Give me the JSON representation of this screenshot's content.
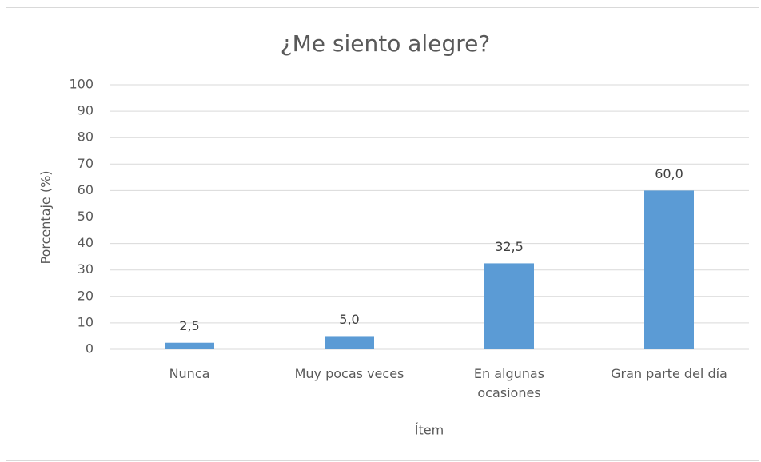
{
  "chart_data": {
    "type": "bar",
    "title": "¿Me siento alegre?",
    "categories": [
      "Nunca",
      "Muy pocas veces",
      "En algunas ocasiones",
      "Gran parte del día"
    ],
    "values": [
      2.5,
      5.0,
      32.5,
      60.0
    ],
    "value_labels": [
      "2,5",
      "5,0",
      "32,5",
      "60,0"
    ],
    "color": "#5b9bd5",
    "x_label": "Ítem",
    "y_label": "Porcentaje (%)",
    "ylim": [
      0,
      100
    ],
    "yticks": [
      0,
      10,
      20,
      30,
      40,
      50,
      60,
      70,
      80,
      90,
      100
    ],
    "grid": true
  }
}
